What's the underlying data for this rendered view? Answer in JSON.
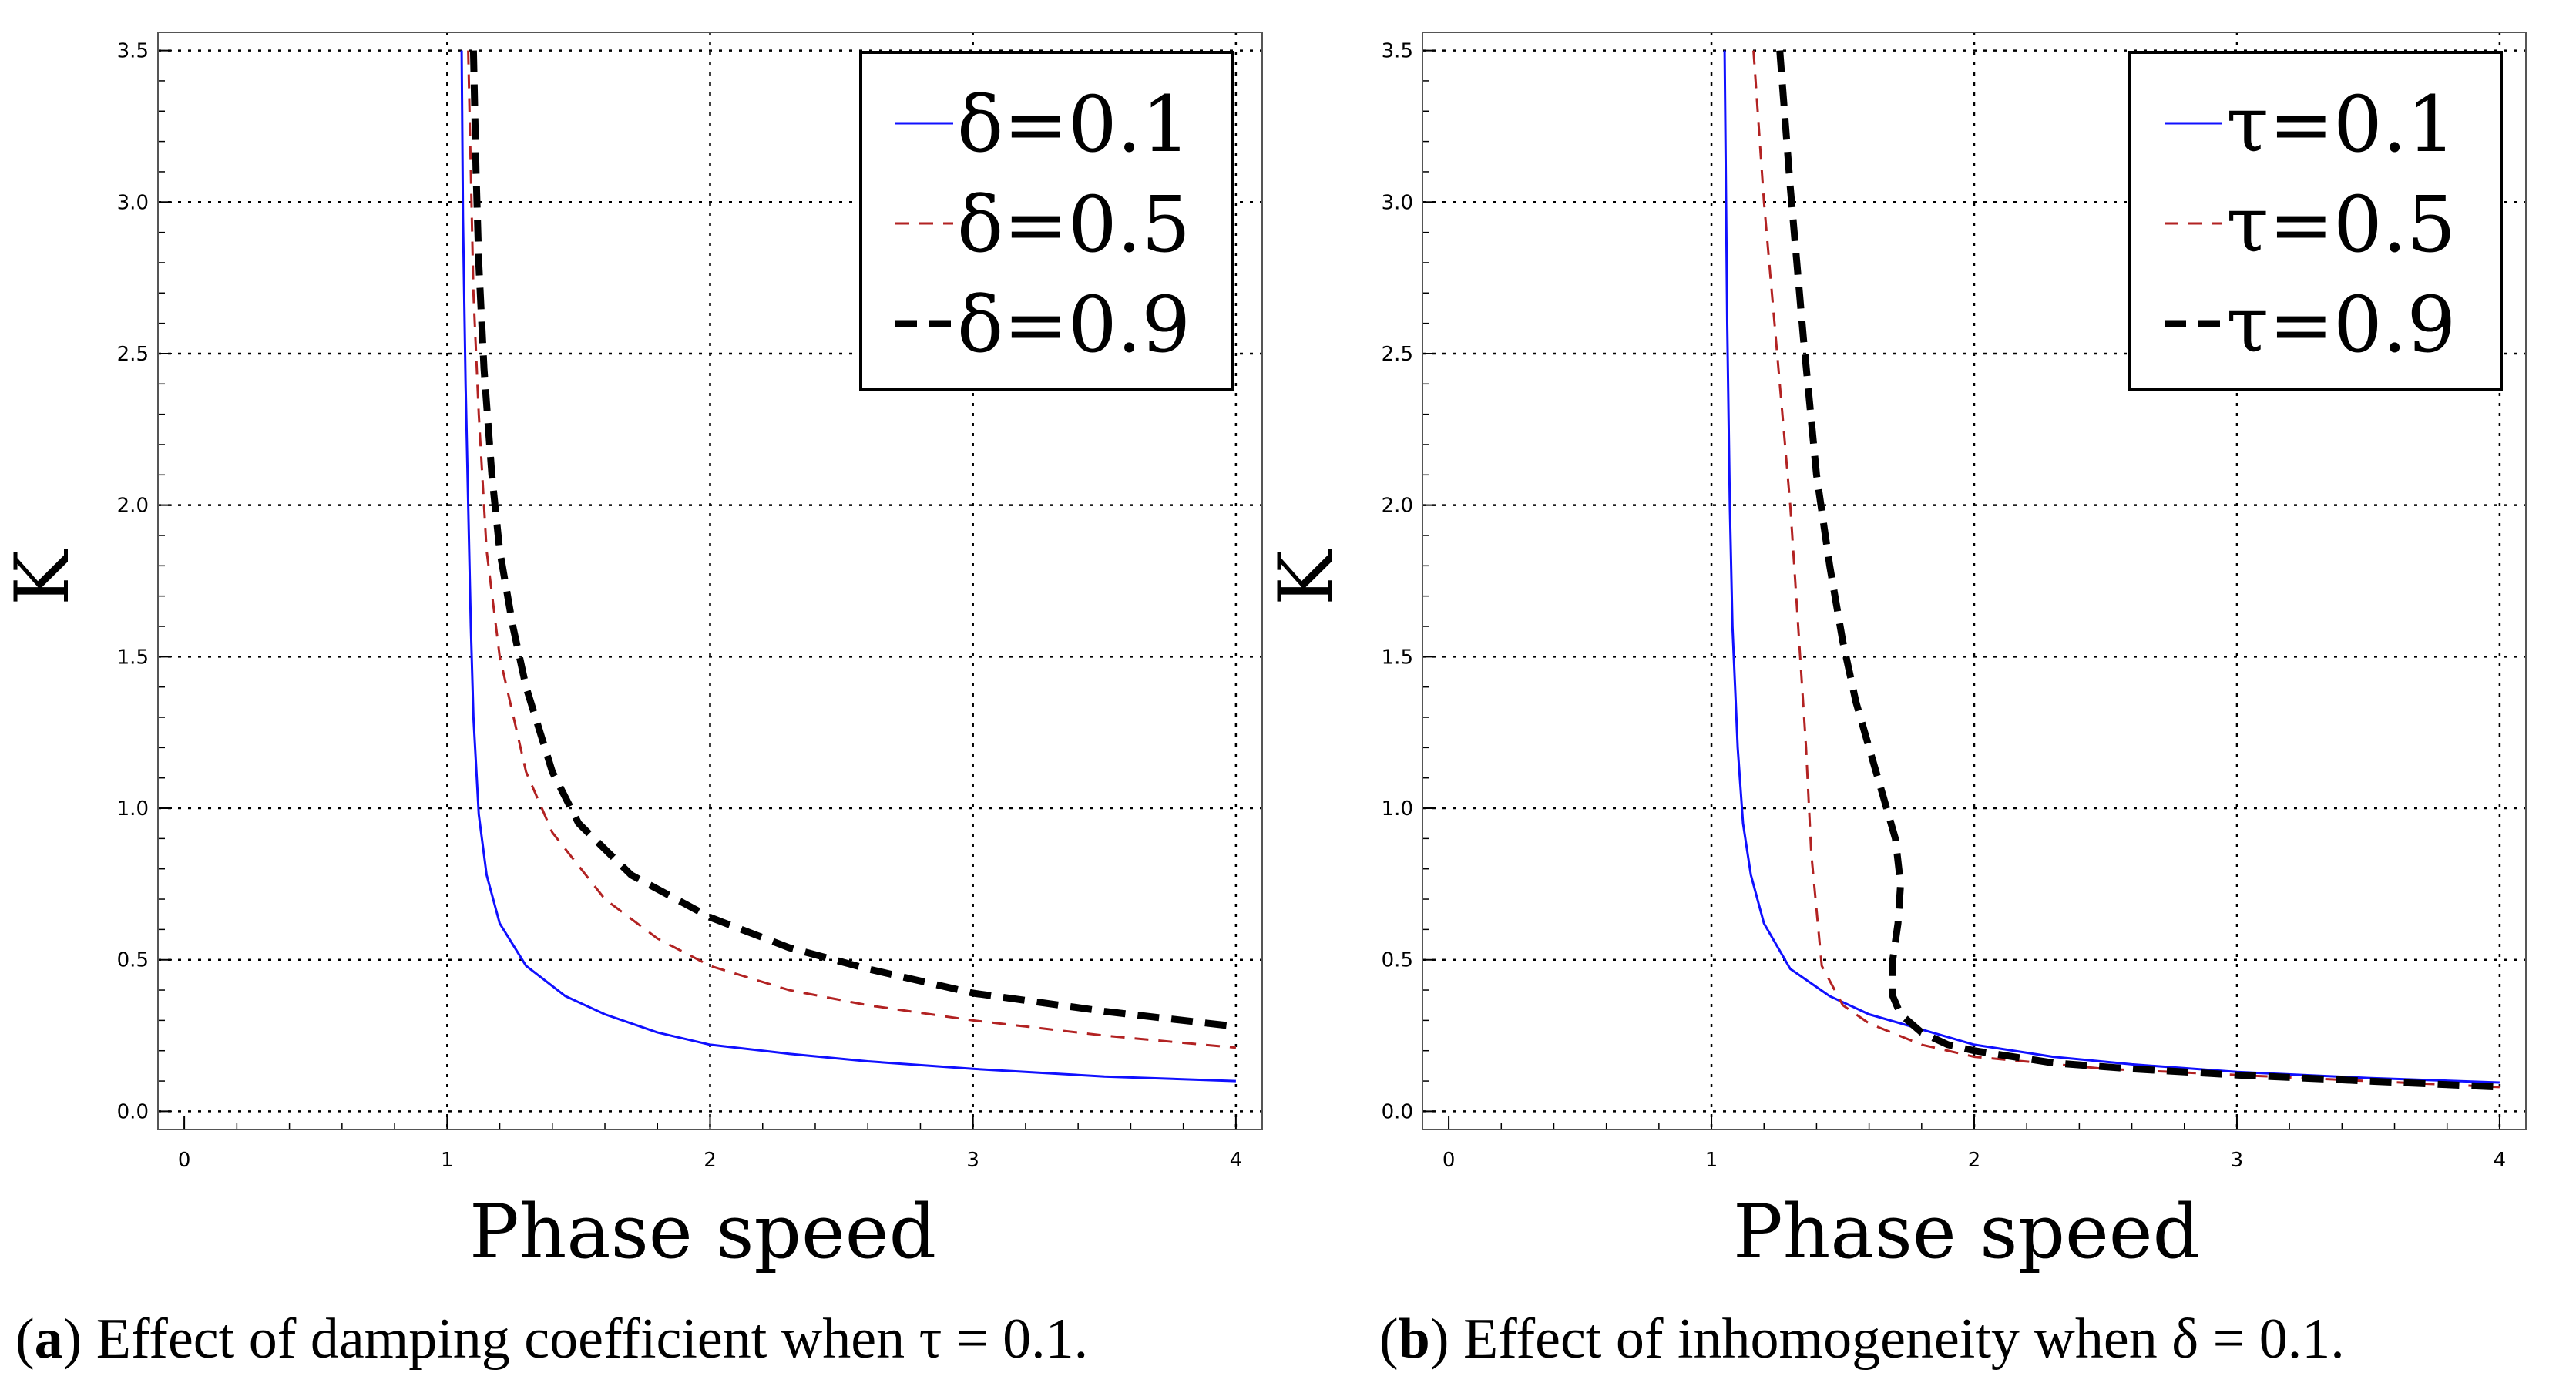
{
  "chart_data": [
    {
      "id": "a",
      "type": "line",
      "xlabel": "Phase speed",
      "ylabel": "K",
      "xlim": [
        -0.1,
        4.1
      ],
      "ylim": [
        -0.06,
        3.56
      ],
      "xticks": [
        "0",
        "1",
        "2",
        "3",
        "4"
      ],
      "yticks": [
        "0.0",
        "0.5",
        "1.0",
        "1.5",
        "2.0",
        "2.5",
        "3.0",
        "3.5"
      ],
      "grid": true,
      "legend_position": "top-right",
      "caption": {
        "label": "a",
        "text": ") Effect of damping coefficient when τ = 0.1."
      },
      "series": [
        {
          "name": "δ=0.1",
          "color": "#1010ff",
          "style": "solid",
          "x": [
            1.055,
            1.06,
            1.07,
            1.08,
            1.09,
            1.1,
            1.12,
            1.15,
            1.2,
            1.3,
            1.45,
            1.6,
            1.8,
            2.0,
            2.3,
            2.6,
            3.0,
            3.5,
            4.0
          ],
          "y": [
            3.5,
            2.95,
            2.4,
            2.0,
            1.6,
            1.3,
            0.98,
            0.78,
            0.62,
            0.48,
            0.38,
            0.32,
            0.26,
            0.22,
            0.19,
            0.165,
            0.14,
            0.115,
            0.1
          ]
        },
        {
          "name": "δ=0.5",
          "color": "#b22222",
          "style": "dashed",
          "x": [
            1.08,
            1.09,
            1.1,
            1.12,
            1.15,
            1.2,
            1.3,
            1.4,
            1.6,
            1.8,
            2.0,
            2.3,
            2.6,
            3.0,
            3.5,
            4.0
          ],
          "y": [
            3.5,
            3.1,
            2.7,
            2.3,
            1.85,
            1.5,
            1.12,
            0.92,
            0.7,
            0.57,
            0.48,
            0.4,
            0.35,
            0.3,
            0.25,
            0.21
          ]
        },
        {
          "name": "δ=0.9",
          "color": "#000000",
          "style": "thick-dashed",
          "x": [
            1.1,
            1.11,
            1.12,
            1.14,
            1.17,
            1.2,
            1.25,
            1.3,
            1.4,
            1.5,
            1.7,
            2.0,
            2.3,
            2.6,
            3.0,
            3.5,
            4.0
          ],
          "y": [
            3.5,
            3.1,
            2.8,
            2.45,
            2.1,
            1.85,
            1.6,
            1.4,
            1.12,
            0.95,
            0.78,
            0.64,
            0.54,
            0.47,
            0.39,
            0.33,
            0.28
          ]
        }
      ]
    },
    {
      "id": "b",
      "type": "line",
      "xlabel": "Phase speed",
      "ylabel": "K",
      "xlim": [
        -0.1,
        4.1
      ],
      "ylim": [
        -0.06,
        3.56
      ],
      "xticks": [
        "0",
        "1",
        "2",
        "3",
        "4"
      ],
      "yticks": [
        "0.0",
        "0.5",
        "1.0",
        "1.5",
        "2.0",
        "2.5",
        "3.0",
        "3.5"
      ],
      "grid": true,
      "legend_position": "top-right",
      "caption": {
        "label": "b",
        "text": ") Effect of inhomogeneity when δ = 0.1."
      },
      "series": [
        {
          "name": "τ=0.1",
          "color": "#1010ff",
          "style": "solid",
          "x": [
            1.05,
            1.06,
            1.07,
            1.08,
            1.1,
            1.12,
            1.15,
            1.2,
            1.3,
            1.45,
            1.6,
            1.8,
            2.0,
            2.3,
            2.6,
            3.0,
            3.5,
            4.0
          ],
          "y": [
            3.5,
            2.6,
            2.0,
            1.6,
            1.2,
            0.95,
            0.78,
            0.62,
            0.47,
            0.38,
            0.32,
            0.27,
            0.22,
            0.18,
            0.155,
            0.13,
            0.11,
            0.095
          ]
        },
        {
          "name": "τ=0.5",
          "color": "#b22222",
          "style": "dashed",
          "x": [
            1.16,
            1.2,
            1.25,
            1.3,
            1.33,
            1.36,
            1.38,
            1.42,
            1.5,
            1.6,
            1.8,
            2.0,
            2.5,
            3.0,
            3.5,
            4.0
          ],
          "y": [
            3.5,
            3.0,
            2.5,
            2.0,
            1.6,
            1.2,
            0.85,
            0.48,
            0.35,
            0.29,
            0.22,
            0.18,
            0.14,
            0.12,
            0.1,
            0.08
          ]
        },
        {
          "name": "τ=0.9",
          "color": "#000000",
          "style": "thick-dashed",
          "x": [
            1.26,
            1.3,
            1.35,
            1.4,
            1.45,
            1.5,
            1.55,
            1.6,
            1.65,
            1.7,
            1.72,
            1.71,
            1.69,
            1.69,
            1.72,
            1.8,
            1.9,
            2.0,
            2.3,
            2.6,
            3.0,
            3.5,
            4.0
          ],
          "y": [
            3.5,
            3.05,
            2.55,
            2.1,
            1.8,
            1.55,
            1.35,
            1.2,
            1.05,
            0.9,
            0.75,
            0.62,
            0.5,
            0.38,
            0.32,
            0.26,
            0.22,
            0.2,
            0.16,
            0.14,
            0.12,
            0.1,
            0.08
          ]
        }
      ]
    }
  ]
}
